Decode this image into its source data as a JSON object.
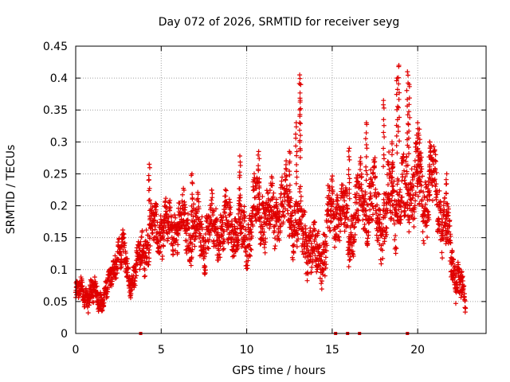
{
  "chart_data": {
    "type": "scatter",
    "title": "Day 072 of 2026, SRMTID for receiver seyg",
    "xlabel": "GPS time / hours",
    "ylabel": "SRMTID / TECUs",
    "xlim": [
      0,
      24
    ],
    "ylim": [
      0,
      0.45
    ],
    "xticks": [
      0,
      5,
      10,
      15,
      20
    ],
    "xtick_labels": [
      "0",
      "5",
      "10",
      "15",
      "20"
    ],
    "yticks": [
      0,
      0.05,
      0.1,
      0.15,
      0.2,
      0.25,
      0.3,
      0.35,
      0.4,
      0.45
    ],
    "ytick_labels": [
      "0",
      "0.05",
      "0.1",
      "0.15",
      "0.2",
      "0.25",
      "0.3",
      "0.35",
      "0.4",
      "0.45"
    ],
    "grid": true,
    "marker_color": "#e00000",
    "marker": "+",
    "series": [
      {
        "name": "SRMTID",
        "trend": {
          "x": [
            0.0,
            0.5,
            1.0,
            1.5,
            2.0,
            2.4,
            2.8,
            3.2,
            3.6,
            4.0,
            4.5,
            5.0,
            5.5,
            6.0,
            6.5,
            7.0,
            7.5,
            8.0,
            8.5,
            9.0,
            9.5,
            10.0,
            10.5,
            11.0,
            11.5,
            12.0,
            12.5,
            13.0,
            13.5,
            14.0,
            14.5,
            15.0,
            15.5,
            16.0,
            16.5,
            17.0,
            17.5,
            18.0,
            18.5,
            19.0,
            19.5,
            20.0,
            20.5,
            21.0,
            21.5,
            22.0,
            22.5,
            22.8
          ],
          "y": [
            0.06,
            0.065,
            0.06,
            0.055,
            0.075,
            0.13,
            0.12,
            0.085,
            0.1,
            0.14,
            0.16,
            0.165,
            0.16,
            0.175,
            0.17,
            0.16,
            0.155,
            0.16,
            0.165,
            0.17,
            0.16,
            0.15,
            0.2,
            0.19,
            0.18,
            0.2,
            0.195,
            0.17,
            0.15,
            0.12,
            0.13,
            0.2,
            0.19,
            0.16,
            0.2,
            0.21,
            0.2,
            0.17,
            0.22,
            0.2,
            0.23,
            0.23,
            0.21,
            0.24,
            0.17,
            0.12,
            0.07,
            0.05
          ]
        },
        "spread": [
          0.02,
          0.02,
          0.025,
          0.02,
          0.02,
          0.03,
          0.03,
          0.02,
          0.03,
          0.04,
          0.04,
          0.04,
          0.04,
          0.04,
          0.045,
          0.045,
          0.045,
          0.045,
          0.045,
          0.045,
          0.045,
          0.045,
          0.05,
          0.05,
          0.05,
          0.05,
          0.05,
          0.05,
          0.05,
          0.04,
          0.05,
          0.05,
          0.05,
          0.05,
          0.055,
          0.055,
          0.055,
          0.055,
          0.06,
          0.06,
          0.06,
          0.06,
          0.06,
          0.05,
          0.05,
          0.04,
          0.03,
          0.02
        ],
        "spikes": [
          {
            "x": 4.3,
            "y": 0.265
          },
          {
            "x": 6.8,
            "y": 0.25
          },
          {
            "x": 9.6,
            "y": 0.278
          },
          {
            "x": 10.7,
            "y": 0.285
          },
          {
            "x": 12.5,
            "y": 0.285
          },
          {
            "x": 12.9,
            "y": 0.33
          },
          {
            "x": 13.1,
            "y": 0.405
          },
          {
            "x": 13.15,
            "y": 0.39
          },
          {
            "x": 16.0,
            "y": 0.29
          },
          {
            "x": 17.0,
            "y": 0.33
          },
          {
            "x": 18.0,
            "y": 0.365
          },
          {
            "x": 18.5,
            "y": 0.3
          },
          {
            "x": 18.8,
            "y": 0.4
          },
          {
            "x": 18.9,
            "y": 0.42
          },
          {
            "x": 19.4,
            "y": 0.41
          },
          {
            "x": 19.5,
            "y": 0.39
          },
          {
            "x": 20.0,
            "y": 0.33
          },
          {
            "x": 20.1,
            "y": 0.32
          },
          {
            "x": 20.7,
            "y": 0.3
          },
          {
            "x": 21.7,
            "y": 0.25
          }
        ],
        "zeros": [
          3.8,
          15.2,
          15.9,
          16.6,
          19.4
        ]
      }
    ]
  }
}
